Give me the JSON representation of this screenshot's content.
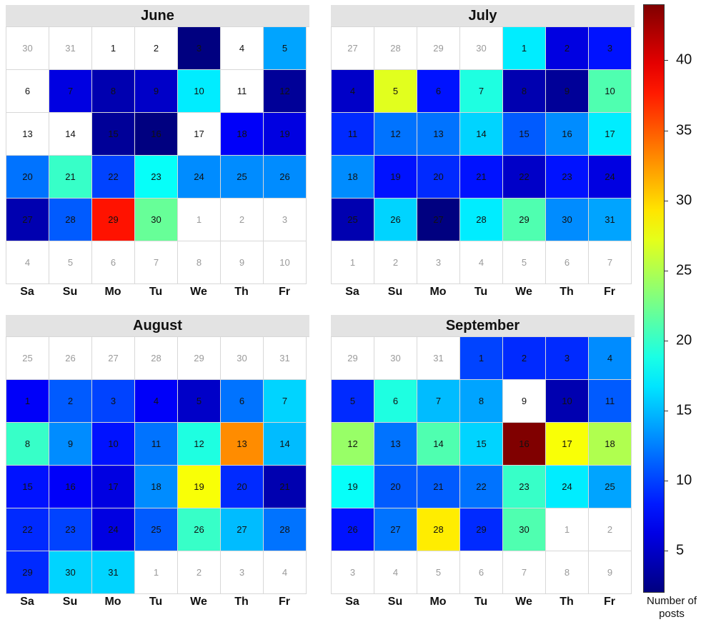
{
  "weekdays": [
    "Sa",
    "Su",
    "Mo",
    "Tu",
    "We",
    "Th",
    "Fr"
  ],
  "colorbar": {
    "label": "Number of\nposts",
    "min": 2,
    "max": 44,
    "ticks": [
      5,
      10,
      15,
      20,
      25,
      30,
      35,
      40
    ]
  },
  "chart_data": {
    "type": "heatmap",
    "colormap": "jet",
    "legend_title": "Number of posts",
    "months": [
      {
        "name": "June",
        "cells": [
          {
            "day": 30,
            "value": null,
            "other": true
          },
          {
            "day": 31,
            "value": null,
            "other": true
          },
          {
            "day": 1,
            "value": null
          },
          {
            "day": 2,
            "value": null
          },
          {
            "day": 3,
            "value": 2
          },
          {
            "day": 4,
            "value": null
          },
          {
            "day": 5,
            "value": 14
          },
          {
            "day": 6,
            "value": null
          },
          {
            "day": 7,
            "value": 6
          },
          {
            "day": 8,
            "value": 4
          },
          {
            "day": 9,
            "value": 5
          },
          {
            "day": 10,
            "value": 17
          },
          {
            "day": 11,
            "value": null
          },
          {
            "day": 12,
            "value": 3
          },
          {
            "day": 13,
            "value": null
          },
          {
            "day": 14,
            "value": null
          },
          {
            "day": 15,
            "value": 3
          },
          {
            "day": 16,
            "value": 2
          },
          {
            "day": 17,
            "value": null
          },
          {
            "day": 18,
            "value": 7
          },
          {
            "day": 19,
            "value": 6
          },
          {
            "day": 20,
            "value": 12
          },
          {
            "day": 21,
            "value": 20
          },
          {
            "day": 22,
            "value": 10
          },
          {
            "day": 23,
            "value": 18
          },
          {
            "day": 24,
            "value": 13
          },
          {
            "day": 25,
            "value": 13
          },
          {
            "day": 26,
            "value": 13
          },
          {
            "day": 27,
            "value": 4
          },
          {
            "day": 28,
            "value": 11
          },
          {
            "day": 29,
            "value": 38
          },
          {
            "day": 30,
            "value": 22
          },
          {
            "day": 1,
            "value": null,
            "other": true
          },
          {
            "day": 2,
            "value": null,
            "other": true
          },
          {
            "day": 3,
            "value": null,
            "other": true
          },
          {
            "day": 4,
            "value": null,
            "other": true
          },
          {
            "day": 5,
            "value": null,
            "other": true
          },
          {
            "day": 6,
            "value": null,
            "other": true
          },
          {
            "day": 7,
            "value": null,
            "other": true
          },
          {
            "day": 8,
            "value": null,
            "other": true
          },
          {
            "day": 9,
            "value": null,
            "other": true
          },
          {
            "day": 10,
            "value": null,
            "other": true
          }
        ]
      },
      {
        "name": "July",
        "cells": [
          {
            "day": 27,
            "value": null,
            "other": true
          },
          {
            "day": 28,
            "value": null,
            "other": true
          },
          {
            "day": 29,
            "value": null,
            "other": true
          },
          {
            "day": 30,
            "value": null,
            "other": true
          },
          {
            "day": 1,
            "value": 17
          },
          {
            "day": 2,
            "value": 6
          },
          {
            "day": 3,
            "value": 8
          },
          {
            "day": 4,
            "value": 5
          },
          {
            "day": 5,
            "value": 27
          },
          {
            "day": 6,
            "value": 8
          },
          {
            "day": 7,
            "value": 19
          },
          {
            "day": 8,
            "value": 4
          },
          {
            "day": 9,
            "value": 3
          },
          {
            "day": 10,
            "value": 21
          },
          {
            "day": 11,
            "value": 9
          },
          {
            "day": 12,
            "value": 12
          },
          {
            "day": 13,
            "value": 12
          },
          {
            "day": 14,
            "value": 16
          },
          {
            "day": 15,
            "value": 11
          },
          {
            "day": 16,
            "value": 13
          },
          {
            "day": 17,
            "value": 17
          },
          {
            "day": 18,
            "value": 13
          },
          {
            "day": 19,
            "value": 8
          },
          {
            "day": 20,
            "value": 9
          },
          {
            "day": 21,
            "value": 8
          },
          {
            "day": 22,
            "value": 5
          },
          {
            "day": 23,
            "value": 8
          },
          {
            "day": 24,
            "value": 6
          },
          {
            "day": 25,
            "value": 4
          },
          {
            "day": 26,
            "value": 16
          },
          {
            "day": 27,
            "value": 2
          },
          {
            "day": 28,
            "value": 17
          },
          {
            "day": 29,
            "value": 21
          },
          {
            "day": 30,
            "value": 13
          },
          {
            "day": 31,
            "value": 14
          },
          {
            "day": 1,
            "value": null,
            "other": true
          },
          {
            "day": 2,
            "value": null,
            "other": true
          },
          {
            "day": 3,
            "value": null,
            "other": true
          },
          {
            "day": 4,
            "value": null,
            "other": true
          },
          {
            "day": 5,
            "value": null,
            "other": true
          },
          {
            "day": 6,
            "value": null,
            "other": true
          },
          {
            "day": 7,
            "value": null,
            "other": true
          }
        ]
      },
      {
        "name": "August",
        "cells": [
          {
            "day": 25,
            "value": null,
            "other": true
          },
          {
            "day": 26,
            "value": null,
            "other": true
          },
          {
            "day": 27,
            "value": null,
            "other": true
          },
          {
            "day": 28,
            "value": null,
            "other": true
          },
          {
            "day": 29,
            "value": null,
            "other": true
          },
          {
            "day": 30,
            "value": null,
            "other": true
          },
          {
            "day": 31,
            "value": null,
            "other": true
          },
          {
            "day": 1,
            "value": 7
          },
          {
            "day": 2,
            "value": 11
          },
          {
            "day": 3,
            "value": 10
          },
          {
            "day": 4,
            "value": 7
          },
          {
            "day": 5,
            "value": 5
          },
          {
            "day": 6,
            "value": 12
          },
          {
            "day": 7,
            "value": 16
          },
          {
            "day": 8,
            "value": 20
          },
          {
            "day": 9,
            "value": 13
          },
          {
            "day": 10,
            "value": 8
          },
          {
            "day": 11,
            "value": 12
          },
          {
            "day": 12,
            "value": 19
          },
          {
            "day": 13,
            "value": 33
          },
          {
            "day": 14,
            "value": 15
          },
          {
            "day": 15,
            "value": 8
          },
          {
            "day": 16,
            "value": 7
          },
          {
            "day": 17,
            "value": 6
          },
          {
            "day": 18,
            "value": 13
          },
          {
            "day": 19,
            "value": 28
          },
          {
            "day": 20,
            "value": 9
          },
          {
            "day": 21,
            "value": 4
          },
          {
            "day": 22,
            "value": 9
          },
          {
            "day": 23,
            "value": 10
          },
          {
            "day": 24,
            "value": 6
          },
          {
            "day": 25,
            "value": 11
          },
          {
            "day": 26,
            "value": 20
          },
          {
            "day": 27,
            "value": 15
          },
          {
            "day": 28,
            "value": 12
          },
          {
            "day": 29,
            "value": 9
          },
          {
            "day": 30,
            "value": 16
          },
          {
            "day": 31,
            "value": 16
          },
          {
            "day": 1,
            "value": null,
            "other": true
          },
          {
            "day": 2,
            "value": null,
            "other": true
          },
          {
            "day": 3,
            "value": null,
            "other": true
          },
          {
            "day": 4,
            "value": null,
            "other": true
          }
        ]
      },
      {
        "name": "September",
        "cells": [
          {
            "day": 29,
            "value": null,
            "other": true
          },
          {
            "day": 30,
            "value": null,
            "other": true
          },
          {
            "day": 31,
            "value": null,
            "other": true
          },
          {
            "day": 1,
            "value": 10
          },
          {
            "day": 2,
            "value": 9
          },
          {
            "day": 3,
            "value": 9
          },
          {
            "day": 4,
            "value": 13
          },
          {
            "day": 5,
            "value": 9
          },
          {
            "day": 6,
            "value": 19
          },
          {
            "day": 7,
            "value": 15
          },
          {
            "day": 8,
            "value": 14
          },
          {
            "day": 9,
            "value": null
          },
          {
            "day": 10,
            "value": 4
          },
          {
            "day": 11,
            "value": 11
          },
          {
            "day": 12,
            "value": 24
          },
          {
            "day": 13,
            "value": 12
          },
          {
            "day": 14,
            "value": 21
          },
          {
            "day": 15,
            "value": 16
          },
          {
            "day": 16,
            "value": 44
          },
          {
            "day": 17,
            "value": 28
          },
          {
            "day": 18,
            "value": 25
          },
          {
            "day": 19,
            "value": 18
          },
          {
            "day": 20,
            "value": 11
          },
          {
            "day": 21,
            "value": 11
          },
          {
            "day": 22,
            "value": 12
          },
          {
            "day": 23,
            "value": 20
          },
          {
            "day": 24,
            "value": 17
          },
          {
            "day": 25,
            "value": 14
          },
          {
            "day": 26,
            "value": 8
          },
          {
            "day": 27,
            "value": 12
          },
          {
            "day": 28,
            "value": 29
          },
          {
            "day": 29,
            "value": 9
          },
          {
            "day": 30,
            "value": 21
          },
          {
            "day": 1,
            "value": null,
            "other": true
          },
          {
            "day": 2,
            "value": null,
            "other": true
          },
          {
            "day": 3,
            "value": null,
            "other": true
          },
          {
            "day": 4,
            "value": null,
            "other": true
          },
          {
            "day": 5,
            "value": null,
            "other": true
          },
          {
            "day": 6,
            "value": null,
            "other": true
          },
          {
            "day": 7,
            "value": null,
            "other": true
          },
          {
            "day": 8,
            "value": null,
            "other": true
          },
          {
            "day": 9,
            "value": null,
            "other": true
          }
        ]
      }
    ]
  }
}
